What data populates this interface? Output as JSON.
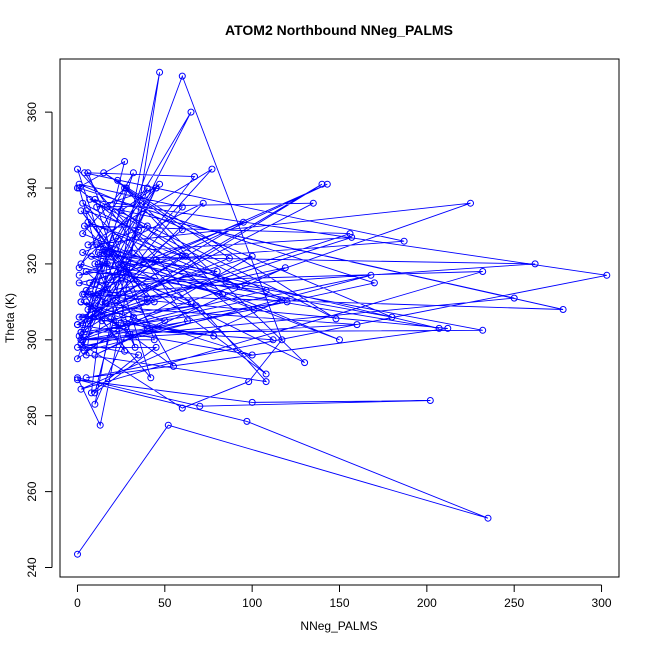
{
  "chart_data": {
    "type": "line",
    "title": "ATOM2 Northbound NNeg_PALMS",
    "xlabel": "NNeg_PALMS",
    "ylabel": "Theta (K)",
    "xlim": [
      -10,
      310
    ],
    "ylim": [
      237.5,
      374
    ],
    "x_ticks": [
      0,
      50,
      100,
      150,
      200,
      250,
      300
    ],
    "y_ticks": [
      240,
      260,
      280,
      300,
      320,
      340,
      360
    ],
    "grid": false,
    "legend": "none",
    "series_color": "#0000ff",
    "marker": "open-circle",
    "series": [
      {
        "x": [
          0,
          52,
          235,
          97,
          0,
          100,
          202,
          70,
          0,
          13,
          25,
          47,
          10,
          32,
          0,
          60,
          117,
          98,
          60,
          2,
          35,
          8,
          17,
          1,
          45,
          3,
          65,
          22,
          1,
          108,
          5,
          40,
          2,
          30,
          19,
          78,
          1,
          87,
          15,
          148,
          10,
          42,
          5,
          55,
          18,
          150,
          3,
          27,
          60,
          10,
          5,
          108,
          0,
          33,
          10,
          83,
          23,
          130,
          3,
          40,
          12,
          77,
          6,
          225,
          2,
          45,
          11,
          135,
          9,
          156,
          4,
          28,
          14,
          100,
          4,
          168,
          21,
          112,
          0,
          27,
          6,
          119,
          10,
          50,
          6,
          80,
          12,
          157,
          0,
          44,
          2,
          40,
          5,
          35,
          14,
          68,
          3,
          95,
          7,
          232,
          2,
          117,
          11,
          65,
          2,
          47,
          25,
          62,
          1,
          40,
          2,
          250,
          17,
          278,
          3,
          212,
          5,
          303,
          7,
          120,
          2,
          232,
          8,
          262,
          4,
          27,
          1,
          170,
          0,
          45,
          10,
          40,
          2,
          100,
          0,
          60,
          6,
          93,
          3,
          108,
          14,
          72,
          2,
          140,
          7,
          60,
          1,
          180,
          12,
          187,
          4,
          63,
          3,
          45,
          5,
          143,
          8,
          32,
          1,
          207,
          15,
          101,
          3,
          44,
          6,
          67,
          10,
          160,
          2,
          28
        ],
        "y": [
          243.5,
          277.5,
          253,
          278.5,
          289.5,
          283.5,
          284,
          282.5,
          290,
          277.5,
          304.5,
          370.5,
          283,
          306,
          295,
          369.5,
          300,
          289,
          282,
          299,
          296,
          286,
          320,
          317,
          321,
          304,
          360,
          327,
          301,
          313,
          318,
          303,
          310,
          301.5,
          305.5,
          301,
          306,
          321.5,
          344,
          305.5,
          337,
          290,
          310,
          293,
          323,
          300,
          328,
          340,
          329,
          311,
          296,
          289,
          345,
          298,
          320,
          312,
          342,
          294,
          323,
          330,
          312,
          345,
          325,
          336,
          300,
          340,
          335,
          336,
          306,
          328,
          330,
          318,
          310,
          322,
          297,
          317,
          303,
          300,
          340,
          347,
          308,
          319,
          296,
          305,
          312,
          318,
          323,
          327,
          304,
          310,
          334,
          311,
          334,
          329,
          305,
          309,
          306,
          331,
          315,
          318,
          287,
          310.5,
          325,
          310,
          320,
          341,
          334,
          322,
          315,
          310,
          300,
          311,
          335,
          308,
          312,
          303,
          290,
          317,
          337,
          310,
          302,
          302.5,
          322,
          320,
          312,
          297,
          340,
          315,
          298,
          298,
          286,
          340,
          310,
          296,
          304,
          322,
          331,
          314,
          336,
          291,
          323,
          336,
          302,
          341,
          305,
          335,
          341,
          306,
          320,
          326,
          344,
          305,
          298,
          340,
          313,
          341,
          312,
          344,
          319,
          303,
          324,
          308,
          300,
          300,
          344,
          343,
          309,
          304,
          300,
          340
        ]
      }
    ]
  }
}
